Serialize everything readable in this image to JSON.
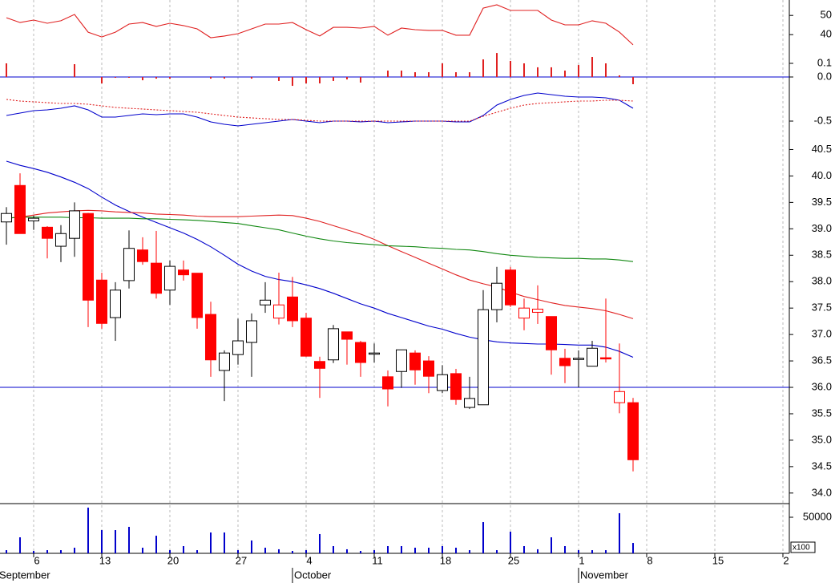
{
  "chart_data": [
    {
      "type": "line",
      "ylim": [
        18,
        58
      ],
      "yticks": [
        50,
        40
      ],
      "series": [
        {
          "color": "#e02020",
          "values": [
            48.8,
            46.3,
            47.6,
            45.9,
            47.2,
            50.5,
            41.3,
            38.8,
            41.3,
            45.5,
            46.3,
            44.3,
            45.9,
            44.7,
            43,
            38.4,
            39.3,
            40.5,
            43,
            45.5,
            45.5,
            46.3,
            42.6,
            39.3,
            43.8,
            43.8,
            43.4,
            44.3,
            39.7,
            43.4,
            42.6,
            42.2,
            42.2,
            39.7,
            39.7,
            53.8,
            55.5,
            52.6,
            52.6,
            52.6,
            47.6,
            45.1,
            45.1,
            47.2,
            45.9,
            41.3,
            34.7
          ]
        }
      ]
    },
    {
      "type": "bar",
      "ylim": [
        -0.1,
        0.2
      ],
      "yticks": [
        {
          "value": 0,
          "label": "0.0"
        },
        0.1
      ],
      "color": "#e02020",
      "zero_line_color": "#0000cc",
      "values": [
        0.1,
        0,
        0,
        0,
        0,
        0.094,
        0,
        -0.047,
        -0.006,
        -0.006,
        -0.024,
        -0.012,
        -0.012,
        0,
        0,
        -0.012,
        -0.012,
        0,
        -0.012,
        0,
        -0.029,
        -0.065,
        -0.047,
        -0.047,
        -0.029,
        -0.018,
        -0.041,
        0,
        0.047,
        0.047,
        0.035,
        0.035,
        0.1,
        0.035,
        0.035,
        0.129,
        0.176,
        0.118,
        0.1,
        0.071,
        0.071,
        0.047,
        0.088,
        0.147,
        0.1,
        0.012,
        -0.053
      ]
    },
    {
      "type": "line",
      "ylim": [
        -0.65,
        -0.05
      ],
      "yticks": [
        -0.5
      ],
      "series": [
        {
          "color": "#0000cc",
          "values": [
            -0.43,
            -0.4,
            -0.37,
            -0.36,
            -0.34,
            -0.31,
            -0.36,
            -0.45,
            -0.45,
            -0.43,
            -0.41,
            -0.42,
            -0.41,
            -0.41,
            -0.45,
            -0.51,
            -0.54,
            -0.56,
            -0.54,
            -0.52,
            -0.5,
            -0.48,
            -0.5,
            -0.52,
            -0.5,
            -0.5,
            -0.51,
            -0.5,
            -0.52,
            -0.51,
            -0.5,
            -0.5,
            -0.5,
            -0.51,
            -0.51,
            -0.43,
            -0.3,
            -0.23,
            -0.18,
            -0.15,
            -0.17,
            -0.19,
            -0.2,
            -0.2,
            -0.21,
            -0.24,
            -0.34
          ]
        },
        {
          "color": "#e02020",
          "dashed": true,
          "values": [
            -0.23,
            -0.25,
            -0.26,
            -0.27,
            -0.28,
            -0.28,
            -0.29,
            -0.31,
            -0.33,
            -0.34,
            -0.35,
            -0.36,
            -0.37,
            -0.38,
            -0.39,
            -0.41,
            -0.43,
            -0.45,
            -0.46,
            -0.47,
            -0.48,
            -0.48,
            -0.49,
            -0.5,
            -0.5,
            -0.5,
            -0.5,
            -0.5,
            -0.5,
            -0.5,
            -0.5,
            -0.5,
            -0.5,
            -0.5,
            -0.5,
            -0.44,
            -0.39,
            -0.34,
            -0.3,
            -0.28,
            -0.27,
            -0.26,
            -0.25,
            -0.25,
            -0.24,
            -0.24,
            -0.25
          ]
        }
      ]
    },
    {
      "type": "candlestick",
      "ylim": [
        33.8,
        40.75
      ],
      "yticks": [
        40.5,
        {
          "value": 40,
          "label": "40.0"
        },
        39.5,
        {
          "value": 39,
          "label": "39.0"
        },
        38.5,
        {
          "value": 38,
          "label": "38.0"
        },
        37.5,
        {
          "value": 37,
          "label": "37.0"
        },
        36.5,
        {
          "value": 36,
          "label": "36.0"
        },
        35.5,
        {
          "value": 35,
          "label": "35.0"
        },
        34.5,
        {
          "value": 34,
          "label": "34.0"
        }
      ],
      "categories": [
        null,
        null,
        null,
        null,
        null,
        null,
        null,
        null,
        null,
        null,
        null,
        null,
        null,
        null,
        null,
        null,
        null,
        null,
        null,
        null,
        null,
        null,
        null,
        null,
        null,
        null,
        null,
        null,
        null,
        null,
        null,
        null,
        null,
        null,
        null,
        null,
        null,
        null,
        null,
        null,
        null,
        null,
        null,
        null,
        null,
        null,
        null
      ],
      "xlim": [
        -0.47,
        57.47
      ],
      "xticks": [
        {
          "value": 2,
          "label": "6"
        },
        {
          "value": 7,
          "label": "13"
        },
        {
          "value": 12,
          "label": "20"
        },
        {
          "value": 17,
          "label": "27"
        },
        {
          "value": 22,
          "label": "4"
        },
        {
          "value": 27,
          "label": "11"
        },
        {
          "value": 32,
          "label": "18"
        },
        {
          "value": 37,
          "label": "25"
        },
        {
          "value": 42,
          "label": "1"
        },
        {
          "value": 47,
          "label": "8"
        },
        {
          "value": 52,
          "label": "15"
        },
        {
          "value": 57,
          "label": "2"
        }
      ],
      "month_ticks": [
        {
          "value": -0.65,
          "label": "September"
        },
        {
          "value": 21,
          "label": "October"
        },
        {
          "value": 42,
          "label": "November"
        }
      ],
      "up_color": "#ffffff",
      "down_color": "#ff0000",
      "edge_color": "#000000",
      "open": [
        39.13,
        39.82,
        39.15,
        39.03,
        38.67,
        38.82,
        39.29,
        38.03,
        37.32,
        38.02,
        38.6,
        38.35,
        37.84,
        38.22,
        38.16,
        37.38,
        36.32,
        36.62,
        36.85,
        37.56,
        37.31,
        37.71,
        37.31,
        36.49,
        36.52,
        37.05,
        36.85,
        36.63,
        36.2,
        36.3,
        36.65,
        36.5,
        35.94,
        36.26,
        35.62,
        35.67,
        37.47,
        38.22,
        37.31,
        37.42,
        37.34,
        36.55,
        36.54,
        36.4,
        36.56,
        35.71,
        35.71
      ],
      "high": [
        39.41,
        40.05,
        39.25,
        39.05,
        39.07,
        39.5,
        39.3,
        38.17,
        37.99,
        38.97,
        38.84,
        38.96,
        38.4,
        38.4,
        38.16,
        37.62,
        36.7,
        37.3,
        37.4,
        37.99,
        38.17,
        38.09,
        37.41,
        36.58,
        37.18,
        37.05,
        36.88,
        36.83,
        36.32,
        36.71,
        36.7,
        36.59,
        36.42,
        36.35,
        36.2,
        37.84,
        38.28,
        38.28,
        37.68,
        37.93,
        37.34,
        36.73,
        36.7,
        36.88,
        37.68,
        36.83,
        35.8
      ],
      "low": [
        38.7,
        38.91,
        38.98,
        38.44,
        38.37,
        38.47,
        37.14,
        37.11,
        36.88,
        37.87,
        38.32,
        37.68,
        37.56,
        38.02,
        37.11,
        36.2,
        35.74,
        36.43,
        36.2,
        37.41,
        37.19,
        37.14,
        36.58,
        35.8,
        36.46,
        36.43,
        36.2,
        36.47,
        35.64,
        35.99,
        36.05,
        35.89,
        35.89,
        35.67,
        35.59,
        35.67,
        37.23,
        37.52,
        37.08,
        37.2,
        36.24,
        36.08,
        36,
        36.4,
        36.47,
        35.51,
        34.41
      ],
      "close": [
        39.29,
        38.91,
        39.2,
        38.82,
        38.91,
        39.34,
        37.65,
        37.21,
        37.84,
        38.63,
        38.38,
        37.78,
        38.29,
        38.13,
        37.32,
        36.52,
        36.65,
        36.88,
        37.26,
        37.65,
        37.56,
        37.26,
        36.59,
        36.36,
        37.11,
        36.91,
        36.47,
        36.65,
        35.97,
        36.71,
        36.33,
        36.21,
        36.24,
        35.77,
        35.79,
        37.47,
        37.97,
        37.56,
        37.5,
        37.48,
        36.71,
        36.41,
        36.55,
        36.74,
        36.54,
        35.92,
        34.63
      ],
      "hline": 36,
      "hline_color": "#0000cc",
      "series": [
        {
          "color": "#0000cc",
          "values": [
            40.28,
            40.2,
            40.14,
            40.07,
            39.98,
            39.88,
            39.76,
            39.6,
            39.45,
            39.33,
            39.22,
            39.12,
            39.02,
            38.92,
            38.8,
            38.66,
            38.5,
            38.33,
            38.2,
            38.1,
            38.04,
            38,
            37.94,
            37.87,
            37.78,
            37.68,
            37.58,
            37.5,
            37.4,
            37.32,
            37.24,
            37.16,
            37.1,
            37.02,
            36.95,
            36.9,
            36.86,
            36.84,
            36.83,
            36.82,
            36.82,
            36.81,
            36.8,
            36.8,
            36.76,
            36.68,
            36.57
          ]
        },
        {
          "color": "#e02020",
          "values": [
            39.2,
            39.22,
            39.26,
            39.3,
            39.32,
            39.34,
            39.35,
            39.34,
            39.32,
            39.31,
            39.3,
            39.28,
            39.27,
            39.26,
            39.24,
            39.23,
            39.23,
            39.23,
            39.24,
            39.25,
            39.26,
            39.25,
            39.2,
            39.14,
            39.06,
            38.98,
            38.9,
            38.8,
            38.68,
            38.57,
            38.46,
            38.35,
            38.24,
            38.13,
            38.03,
            37.96,
            37.9,
            37.8,
            37.72,
            37.66,
            37.6,
            37.55,
            37.52,
            37.49,
            37.45,
            37.38,
            37.3
          ]
        },
        {
          "color": "#118811",
          "values": [
            39.2,
            39.22,
            39.22,
            39.22,
            39.22,
            39.21,
            39.21,
            39.2,
            39.2,
            39.2,
            39.19,
            39.19,
            39.18,
            39.17,
            39.16,
            39.14,
            39.12,
            39.1,
            39.06,
            39.02,
            38.98,
            38.92,
            38.86,
            38.81,
            38.77,
            38.74,
            38.72,
            38.7,
            38.68,
            38.67,
            38.66,
            38.64,
            38.63,
            38.61,
            38.6,
            38.57,
            38.53,
            38.5,
            38.48,
            38.46,
            38.45,
            38.44,
            38.44,
            38.43,
            38.43,
            38.41,
            38.38
          ]
        }
      ]
    },
    {
      "type": "bar",
      "ylim": [
        0,
        68900
      ],
      "yticks": [
        50000
      ],
      "color": "#0000cc",
      "unit_label": "x100",
      "values": [
        4400,
        22200,
        3300,
        4400,
        4400,
        7800,
        63300,
        32200,
        32200,
        36700,
        7800,
        24400,
        4400,
        10000,
        4400,
        28900,
        28900,
        4400,
        17800,
        7800,
        5600,
        3300,
        4400,
        26700,
        10000,
        5600,
        3300,
        4400,
        10000,
        10000,
        7800,
        7800,
        10000,
        7800,
        4400,
        43300,
        4400,
        30000,
        10000,
        5600,
        22200,
        10000,
        4400,
        4400,
        4400,
        55600,
        14400
      ]
    }
  ]
}
